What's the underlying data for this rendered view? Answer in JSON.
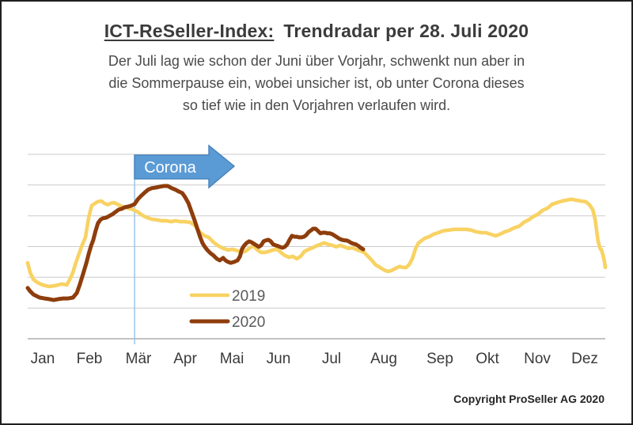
{
  "header": {
    "title_underlined": "ICT-ReSeller-Index:",
    "title_rest": "Trendradar per 28. Juli 2020",
    "subtitle_lines": [
      "Der Juli lag wie schon der Juni über Vorjahr, schwenkt nun aber in",
      "die Sommerpause ein, wobei unsicher ist, ob unter Corona dieses",
      "so tief wie in den Vorjahren verlaufen wird."
    ]
  },
  "annotation": {
    "arrow_label": "Corona",
    "arrow_fill": "#5b9bd5",
    "arrow_border": "#4a85bd",
    "line_color": "#9dc3e6",
    "line_month": 2.22
  },
  "legend": [
    {
      "label": "2019",
      "color": "#f8d263"
    },
    {
      "label": "2020",
      "color": "#8e3d0c"
    }
  ],
  "footer": {
    "copyright": "Copyright ProSeller AG 2020"
  },
  "chart_data": {
    "type": "line",
    "title": "ICT-ReSeller-Index: Trendradar per 28. Juli 2020",
    "xlabel": "",
    "ylabel": "",
    "categories": [
      "Jan",
      "Feb",
      "Mär",
      "Apr",
      "Mai",
      "Jun",
      "Jul",
      "Aug",
      "Sep",
      "Okt",
      "Nov",
      "Dez"
    ],
    "x_range_months": [
      0,
      12
    ],
    "y_axis": {
      "tick_labels_visible": false,
      "gridline_values": [
        0,
        10,
        20,
        30,
        40,
        50,
        60
      ],
      "ylim": [
        0,
        64
      ]
    },
    "grid": "horizontal",
    "legend_position": "inside bottom-center",
    "series": [
      {
        "name": "2019",
        "color": "#f8d263",
        "points": [
          [
            0,
            24.7
          ],
          [
            0.05,
            21.6
          ],
          [
            0.12,
            19.3
          ],
          [
            0.2,
            18.3
          ],
          [
            0.31,
            17.5
          ],
          [
            0.44,
            17
          ],
          [
            0.58,
            17.3
          ],
          [
            0.71,
            17.8
          ],
          [
            0.81,
            17.5
          ],
          [
            0.87,
            19.1
          ],
          [
            0.94,
            21.6
          ],
          [
            1,
            24.7
          ],
          [
            1.07,
            27.8
          ],
          [
            1.13,
            30.4
          ],
          [
            1.2,
            33
          ],
          [
            1.27,
            39.7
          ],
          [
            1.33,
            43.3
          ],
          [
            1.4,
            44.1
          ],
          [
            1.46,
            44.6
          ],
          [
            1.53,
            44.8
          ],
          [
            1.59,
            44.1
          ],
          [
            1.66,
            43.6
          ],
          [
            1.73,
            44.1
          ],
          [
            1.79,
            44.3
          ],
          [
            1.86,
            43.8
          ],
          [
            1.92,
            43.3
          ],
          [
            2.01,
            42.8
          ],
          [
            2.09,
            42.5
          ],
          [
            2.19,
            42
          ],
          [
            2.29,
            41.2
          ],
          [
            2.38,
            40.2
          ],
          [
            2.48,
            39.4
          ],
          [
            2.58,
            38.9
          ],
          [
            2.68,
            38.7
          ],
          [
            2.78,
            38.4
          ],
          [
            2.88,
            38.4
          ],
          [
            2.98,
            38.1
          ],
          [
            3.07,
            38.4
          ],
          [
            3.17,
            38.1
          ],
          [
            3.27,
            38.1
          ],
          [
            3.37,
            37.9
          ],
          [
            3.47,
            36.9
          ],
          [
            3.57,
            34.8
          ],
          [
            3.67,
            33.5
          ],
          [
            3.76,
            33
          ],
          [
            3.86,
            31.4
          ],
          [
            3.96,
            30.2
          ],
          [
            4.06,
            29.4
          ],
          [
            4.16,
            28.9
          ],
          [
            4.26,
            29.1
          ],
          [
            4.36,
            28.6
          ],
          [
            4.44,
            28.1
          ],
          [
            4.52,
            28.4
          ],
          [
            4.6,
            29.4
          ],
          [
            4.69,
            30.2
          ],
          [
            4.77,
            28.9
          ],
          [
            4.85,
            28.1
          ],
          [
            4.93,
            28.1
          ],
          [
            5.01,
            28.4
          ],
          [
            5.1,
            28.9
          ],
          [
            5.18,
            29.1
          ],
          [
            5.26,
            28.1
          ],
          [
            5.34,
            27.1
          ],
          [
            5.43,
            26.5
          ],
          [
            5.51,
            26.8
          ],
          [
            5.59,
            26
          ],
          [
            5.67,
            26.8
          ],
          [
            5.75,
            28.4
          ],
          [
            5.84,
            29.1
          ],
          [
            5.92,
            29.6
          ],
          [
            6,
            30.2
          ],
          [
            6.08,
            30.7
          ],
          [
            6.16,
            31.2
          ],
          [
            6.25,
            30.7
          ],
          [
            6.33,
            30.4
          ],
          [
            6.41,
            29.9
          ],
          [
            6.49,
            30.4
          ],
          [
            6.58,
            29.9
          ],
          [
            6.66,
            29.4
          ],
          [
            6.74,
            29.6
          ],
          [
            6.82,
            29.1
          ],
          [
            6.9,
            28.6
          ],
          [
            6.99,
            28.1
          ],
          [
            7.07,
            26.8
          ],
          [
            7.15,
            25.5
          ],
          [
            7.23,
            24
          ],
          [
            7.32,
            23.2
          ],
          [
            7.4,
            22.4
          ],
          [
            7.48,
            21.9
          ],
          [
            7.56,
            22.2
          ],
          [
            7.64,
            22.9
          ],
          [
            7.73,
            23.5
          ],
          [
            7.79,
            23.2
          ],
          [
            7.86,
            23.2
          ],
          [
            7.92,
            24
          ],
          [
            7.99,
            26
          ],
          [
            8.06,
            29.4
          ],
          [
            8.12,
            31.2
          ],
          [
            8.19,
            32
          ],
          [
            8.25,
            32.7
          ],
          [
            8.34,
            33.2
          ],
          [
            8.43,
            34
          ],
          [
            8.53,
            34.5
          ],
          [
            8.63,
            35.1
          ],
          [
            8.73,
            35.3
          ],
          [
            8.86,
            35.6
          ],
          [
            8.99,
            35.6
          ],
          [
            9.12,
            35.6
          ],
          [
            9.22,
            35.3
          ],
          [
            9.32,
            34.8
          ],
          [
            9.42,
            34.5
          ],
          [
            9.52,
            34.5
          ],
          [
            9.62,
            34
          ],
          [
            9.72,
            33.5
          ],
          [
            9.81,
            34
          ],
          [
            9.91,
            34.8
          ],
          [
            10.01,
            35.3
          ],
          [
            10.11,
            36.1
          ],
          [
            10.21,
            36.6
          ],
          [
            10.31,
            37.9
          ],
          [
            10.41,
            38.7
          ],
          [
            10.5,
            39.7
          ],
          [
            10.6,
            40.5
          ],
          [
            10.7,
            41.8
          ],
          [
            10.8,
            42.5
          ],
          [
            10.9,
            43.8
          ],
          [
            11,
            44.3
          ],
          [
            11.1,
            44.8
          ],
          [
            11.2,
            45.1
          ],
          [
            11.29,
            45.4
          ],
          [
            11.39,
            45.1
          ],
          [
            11.49,
            44.8
          ],
          [
            11.59,
            44.6
          ],
          [
            11.67,
            43.6
          ],
          [
            11.74,
            42
          ],
          [
            11.79,
            38.7
          ],
          [
            11.82,
            35.1
          ],
          [
            11.85,
            31.7
          ],
          [
            11.89,
            29.4
          ],
          [
            11.92,
            28.9
          ],
          [
            11.95,
            27.3
          ],
          [
            11.98,
            25.3
          ],
          [
            12,
            23.2
          ]
        ]
      },
      {
        "name": "2020",
        "color": "#8e3d0c",
        "points": [
          [
            0,
            16.5
          ],
          [
            0.05,
            15.5
          ],
          [
            0.12,
            14.4
          ],
          [
            0.18,
            13.9
          ],
          [
            0.25,
            13.4
          ],
          [
            0.35,
            13.1
          ],
          [
            0.44,
            12.9
          ],
          [
            0.54,
            12.6
          ],
          [
            0.64,
            12.9
          ],
          [
            0.74,
            13.1
          ],
          [
            0.84,
            13.1
          ],
          [
            0.94,
            13.4
          ],
          [
            1.02,
            14.9
          ],
          [
            1.08,
            17.5
          ],
          [
            1.15,
            21.1
          ],
          [
            1.22,
            24.7
          ],
          [
            1.27,
            27.8
          ],
          [
            1.32,
            30.4
          ],
          [
            1.36,
            32
          ],
          [
            1.41,
            35.1
          ],
          [
            1.46,
            37.6
          ],
          [
            1.51,
            38.7
          ],
          [
            1.56,
            39.2
          ],
          [
            1.63,
            39.4
          ],
          [
            1.69,
            39.9
          ],
          [
            1.76,
            40.5
          ],
          [
            1.82,
            41.2
          ],
          [
            1.89,
            42
          ],
          [
            1.96,
            42.3
          ],
          [
            2.02,
            42.8
          ],
          [
            2.09,
            43
          ],
          [
            2.15,
            43.3
          ],
          [
            2.22,
            43.8
          ],
          [
            2.29,
            45.4
          ],
          [
            2.35,
            46.4
          ],
          [
            2.42,
            47.4
          ],
          [
            2.5,
            48.5
          ],
          [
            2.58,
            49
          ],
          [
            2.66,
            49.2
          ],
          [
            2.75,
            49.5
          ],
          [
            2.83,
            49.7
          ],
          [
            2.91,
            49.7
          ],
          [
            2.99,
            49
          ],
          [
            3.07,
            48.5
          ],
          [
            3.14,
            47.9
          ],
          [
            3.21,
            47.4
          ],
          [
            3.27,
            46.1
          ],
          [
            3.34,
            44.1
          ],
          [
            3.4,
            41.5
          ],
          [
            3.47,
            38.4
          ],
          [
            3.53,
            35.6
          ],
          [
            3.58,
            33.2
          ],
          [
            3.63,
            31.2
          ],
          [
            3.68,
            29.9
          ],
          [
            3.73,
            28.9
          ],
          [
            3.8,
            27.8
          ],
          [
            3.86,
            27.1
          ],
          [
            3.93,
            26
          ],
          [
            3.99,
            25.5
          ],
          [
            4.06,
            26.3
          ],
          [
            4.11,
            25.5
          ],
          [
            4.16,
            25
          ],
          [
            4.22,
            24.7
          ],
          [
            4.29,
            25
          ],
          [
            4.36,
            25.5
          ],
          [
            4.41,
            26.8
          ],
          [
            4.45,
            29.1
          ],
          [
            4.5,
            30.4
          ],
          [
            4.55,
            31.2
          ],
          [
            4.6,
            31.7
          ],
          [
            4.65,
            31.4
          ],
          [
            4.7,
            30.9
          ],
          [
            4.75,
            30.4
          ],
          [
            4.8,
            29.9
          ],
          [
            4.85,
            30.4
          ],
          [
            4.9,
            31.7
          ],
          [
            4.95,
            32
          ],
          [
            5,
            32.2
          ],
          [
            5.05,
            31.7
          ],
          [
            5.1,
            30.7
          ],
          [
            5.15,
            30.4
          ],
          [
            5.19,
            30.2
          ],
          [
            5.24,
            29.9
          ],
          [
            5.29,
            29.6
          ],
          [
            5.34,
            29.9
          ],
          [
            5.39,
            30.7
          ],
          [
            5.44,
            32.2
          ],
          [
            5.49,
            33.5
          ],
          [
            5.54,
            33.2
          ],
          [
            5.59,
            33.2
          ],
          [
            5.64,
            33
          ],
          [
            5.69,
            33
          ],
          [
            5.74,
            33.2
          ],
          [
            5.79,
            33.8
          ],
          [
            5.84,
            34.8
          ],
          [
            5.89,
            35.3
          ],
          [
            5.93,
            35.8
          ],
          [
            5.98,
            35.8
          ],
          [
            6.03,
            35.1
          ],
          [
            6.08,
            34.3
          ],
          [
            6.13,
            34.5
          ],
          [
            6.18,
            34.5
          ],
          [
            6.23,
            34.3
          ],
          [
            6.28,
            34.3
          ],
          [
            6.33,
            34
          ],
          [
            6.38,
            33.5
          ],
          [
            6.43,
            33
          ],
          [
            6.48,
            32.5
          ],
          [
            6.53,
            32.2
          ],
          [
            6.58,
            32
          ],
          [
            6.62,
            32
          ],
          [
            6.67,
            31.7
          ],
          [
            6.72,
            31.2
          ],
          [
            6.77,
            30.9
          ],
          [
            6.82,
            30.7
          ],
          [
            6.87,
            30.2
          ],
          [
            6.92,
            29.6
          ],
          [
            6.97,
            29.1
          ]
        ]
      }
    ]
  }
}
